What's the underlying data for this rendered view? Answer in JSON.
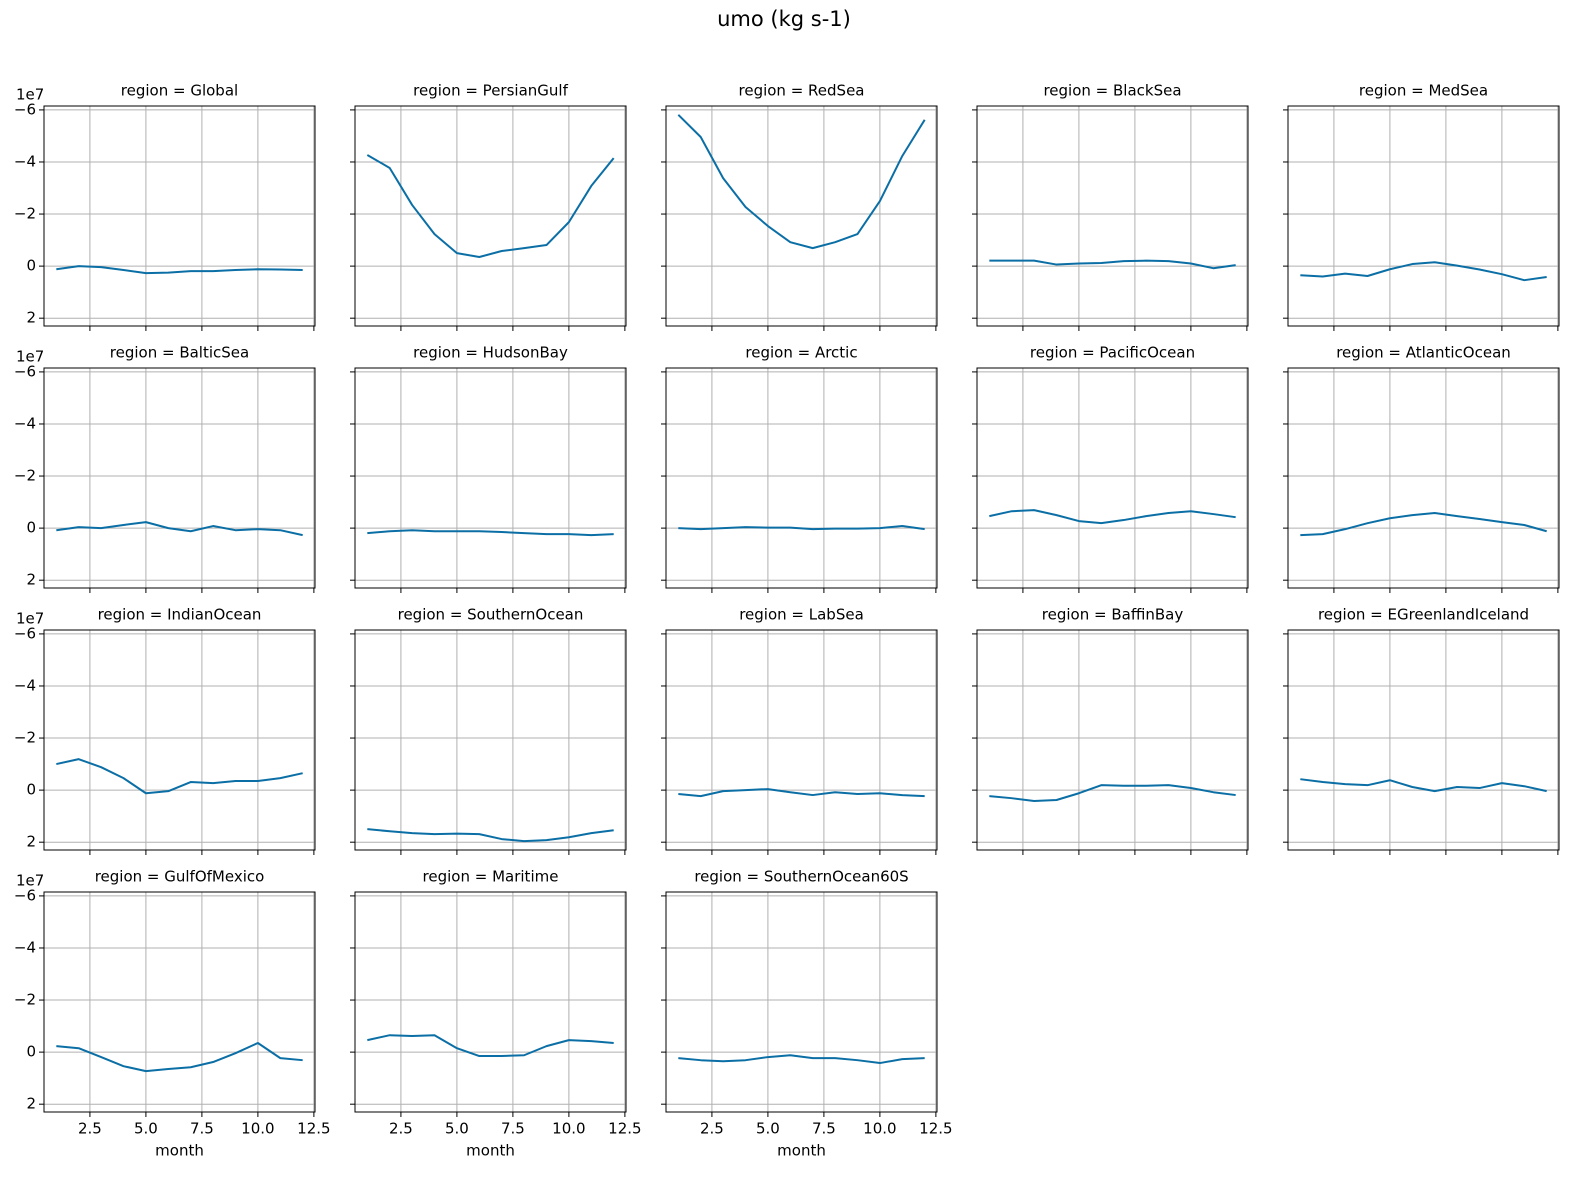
{
  "chart_data": {
    "type": "line",
    "title": "umo (kg s-1)",
    "xlabel": "month",
    "y_offset_label": "1e7",
    "x": [
      1,
      2,
      3,
      4,
      5,
      6,
      7,
      8,
      9,
      10,
      11,
      12
    ],
    "xlim": [
      0.45,
      12.55
    ],
    "xticks": [
      2.5,
      {
        "value": 5,
        "label": "5.0"
      },
      7.5,
      {
        "value": 10,
        "label": "10.0"
      },
      12.5
    ],
    "ylim": [
      -6.15,
      2.3
    ],
    "yticks": [
      {
        "value": -6,
        "label": "−6"
      },
      {
        "value": -4,
        "label": "−4"
      },
      {
        "value": -2,
        "label": "−2"
      },
      0,
      2
    ],
    "y_inverted": true,
    "grid": true,
    "color": "#0b6fa6",
    "panels": [
      {
        "title": "region = Global",
        "values": [
          0.12,
          0,
          0.04,
          0.15,
          0.27,
          0.25,
          0.19,
          0.19,
          0.15,
          0.12,
          0.13,
          0.15
        ]
      },
      {
        "title": "region = PersianGulf",
        "values": [
          -4.27,
          -3.77,
          -2.35,
          -1.23,
          -0.5,
          -0.35,
          -0.58,
          -0.69,
          -0.81,
          -1.69,
          -3.08,
          -4.15
        ]
      },
      {
        "title": "region = RedSea",
        "values": [
          -5.81,
          -4.96,
          -3.38,
          -2.27,
          -1.54,
          -0.92,
          -0.69,
          -0.92,
          -1.23,
          -2.5,
          -4.23,
          -5.62
        ]
      },
      {
        "title": "region = BlackSea",
        "values": [
          -0.21,
          -0.21,
          -0.21,
          -0.06,
          -0.1,
          -0.12,
          -0.19,
          -0.21,
          -0.19,
          -0.1,
          0.08,
          -0.04
        ]
      },
      {
        "title": "region = MedSea",
        "values": [
          0.35,
          0.4,
          0.29,
          0.38,
          0.12,
          -0.08,
          -0.15,
          -0.02,
          0.13,
          0.31,
          0.54,
          0.42
        ]
      },
      {
        "title": "region = BalticSea",
        "values": [
          0.08,
          -0.04,
          0,
          -0.12,
          -0.23,
          0,
          0.12,
          -0.08,
          0.08,
          0.04,
          0.08,
          0.27
        ]
      },
      {
        "title": "region = HudsonBay",
        "values": [
          0.19,
          0.12,
          0.08,
          0.12,
          0.12,
          0.12,
          0.15,
          0.19,
          0.23,
          0.23,
          0.27,
          0.23
        ]
      },
      {
        "title": "region = Arctic",
        "values": [
          0,
          0.04,
          0,
          -0.04,
          -0.02,
          -0.02,
          0.04,
          0.02,
          0.02,
          0,
          -0.08,
          0.04
        ]
      },
      {
        "title": "region = PacificOcean",
        "values": [
          -0.46,
          -0.65,
          -0.69,
          -0.5,
          -0.27,
          -0.19,
          -0.31,
          -0.46,
          -0.58,
          -0.65,
          -0.54,
          -0.42
        ]
      },
      {
        "title": "region = AtlanticOcean",
        "values": [
          0.27,
          0.23,
          0.04,
          -0.19,
          -0.38,
          -0.5,
          -0.58,
          -0.46,
          -0.35,
          -0.23,
          -0.12,
          0.12
        ]
      },
      {
        "title": "region = IndianOcean",
        "values": [
          -1,
          -1.19,
          -0.88,
          -0.46,
          0.12,
          0.04,
          -0.31,
          -0.27,
          -0.35,
          -0.35,
          -0.46,
          -0.65
        ]
      },
      {
        "title": "region = SouthernOcean",
        "values": [
          1.5,
          1.58,
          1.65,
          1.69,
          1.67,
          1.69,
          1.88,
          1.96,
          1.92,
          1.81,
          1.65,
          1.54
        ]
      },
      {
        "title": "region = LabSea",
        "values": [
          0.15,
          0.23,
          0.04,
          0,
          -0.04,
          0.08,
          0.19,
          0.08,
          0.15,
          0.12,
          0.19,
          0.23
        ]
      },
      {
        "title": "region = BaffinBay",
        "values": [
          0.23,
          0.31,
          0.42,
          0.38,
          0.12,
          -0.19,
          -0.17,
          -0.17,
          -0.19,
          -0.08,
          0.08,
          0.19
        ]
      },
      {
        "title": "region = EGreenlandIceland",
        "values": [
          -0.42,
          -0.31,
          -0.23,
          -0.19,
          -0.38,
          -0.12,
          0.04,
          -0.12,
          -0.08,
          -0.27,
          -0.15,
          0.04
        ]
      },
      {
        "title": "region = GulfOfMexico",
        "values": [
          -0.23,
          -0.15,
          0.19,
          0.54,
          0.73,
          0.65,
          0.58,
          0.38,
          0.04,
          -0.35,
          0.23,
          0.31
        ]
      },
      {
        "title": "region = Maritime",
        "values": [
          -0.46,
          -0.65,
          -0.62,
          -0.65,
          -0.15,
          0.15,
          0.15,
          0.12,
          -0.23,
          -0.46,
          -0.42,
          -0.35
        ]
      },
      {
        "title": "region = SouthernOcean60S",
        "values": [
          0.23,
          0.31,
          0.35,
          0.31,
          0.19,
          0.12,
          0.23,
          0.23,
          0.31,
          0.42,
          0.27,
          0.23
        ]
      }
    ]
  }
}
